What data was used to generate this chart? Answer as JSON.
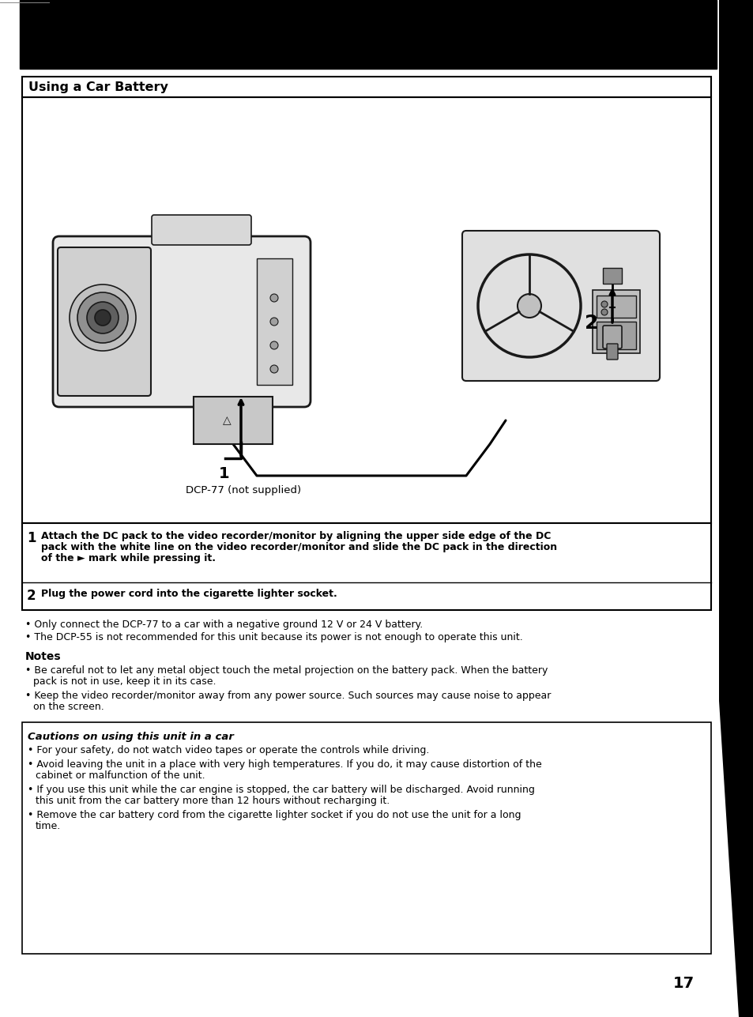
{
  "bg_color": "#ffffff",
  "page_number": "17",
  "section_title": "Using a Car Battery",
  "diagram_caption": "DCP-77 (not supplied)",
  "step1_label": "1",
  "step1_text_line1": "Attach the DC pack to the video recorder/monitor by aligning the upper side edge of the DC",
  "step1_text_line2": "pack with the white line on the video recorder/monitor and slide the DC pack in the direction",
  "step1_text_line3": "of the ► mark while pressing it.",
  "step2_label": "2",
  "step2_text": "Plug the power cord into the cigarette lighter socket.",
  "bullets": [
    "Only connect the DCP-77 to a car with a negative ground 12 V or 24 V battery.",
    "The DCP-55 is not recommended for this unit because its power is not enough to operate this unit."
  ],
  "notes_title": "Notes",
  "notes": [
    [
      "Be careful not to let any metal object touch the metal projection on the battery pack. When the battery",
      "pack is not in use, keep it in its case."
    ],
    [
      "Keep the video recorder/monitor away from any power source. Such sources may cause noise to appear",
      "on the screen."
    ]
  ],
  "cautions_title": "Cautions on using this unit in a car",
  "cautions": [
    [
      "For your safety, do not watch video tapes or operate the controls while driving."
    ],
    [
      "Avoid leaving the unit in a place with very high temperatures. If you do, it may cause distortion of the",
      "cabinet or malfunction of the unit."
    ],
    [
      "If you use this unit while the car engine is stopped, the car battery will be discharged. Avoid running",
      "this unit from the car battery more than 12 hours without recharging it."
    ],
    [
      "Remove the car battery cord from the cigarette lighter socket if you do not use the unit for a long",
      "time."
    ]
  ]
}
